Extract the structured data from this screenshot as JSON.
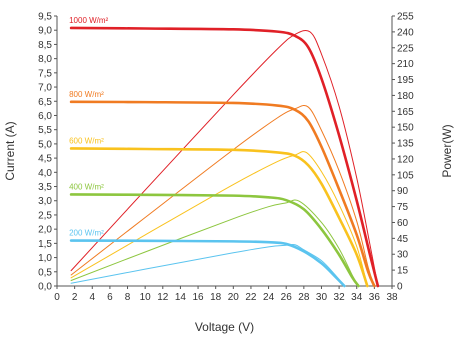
{
  "chart_data": {
    "type": "line",
    "xlabel": "Voltage (V)",
    "ylabel_left": "Current (A)",
    "ylabel_right": "Power(W)",
    "xlim": [
      0,
      38
    ],
    "ylim_left": [
      0,
      9.5
    ],
    "ylim_right": [
      0,
      255
    ],
    "x_ticks": [
      "0",
      "2",
      "4",
      "6",
      "8",
      "10",
      "12",
      "14",
      "16",
      "18",
      "20",
      "22",
      "24",
      "26",
      "28",
      "30",
      "32",
      "34",
      "36",
      "38"
    ],
    "y_left_ticks": [
      "0,0",
      "0,5",
      "1,0",
      "1,5",
      "2,0",
      "2,5",
      "3,0",
      "3,5",
      "4,0",
      "4,5",
      "5,0",
      "5,5",
      "6,0",
      "6,5",
      "7,0",
      "7,5",
      "8,0",
      "8,5",
      "9,0",
      "9,5"
    ],
    "y_right_ticks": [
      "0",
      "15",
      "30",
      "45",
      "60",
      "75",
      "90",
      "105",
      "120",
      "135",
      "150",
      "165",
      "180",
      "195",
      "210",
      "225",
      "240",
      "255"
    ],
    "grid": false,
    "series": [
      {
        "name": "1000 W/m²",
        "color": "#e02027",
        "iv": [
          [
            1.6,
            9.08
          ],
          [
            10,
            9.06
          ],
          [
            20,
            9.03
          ],
          [
            25,
            8.95
          ],
          [
            27,
            8.8
          ],
          [
            28.5,
            8.4
          ],
          [
            30,
            7.3
          ],
          [
            32,
            5.3
          ],
          [
            34,
            3.0
          ],
          [
            35.5,
            1.1
          ],
          [
            36.4,
            0
          ]
        ],
        "pv": [
          [
            1.6,
            14.5
          ],
          [
            10,
            90.6
          ],
          [
            20,
            180.6
          ],
          [
            25,
            223.8
          ],
          [
            27,
            237.6
          ],
          [
            28.7,
            240
          ],
          [
            30,
            219
          ],
          [
            32,
            169.6
          ],
          [
            34,
            102
          ],
          [
            35.5,
            39
          ],
          [
            36.4,
            0
          ]
        ]
      },
      {
        "name": "800 W/m²",
        "color": "#f07b22",
        "iv": [
          [
            1.6,
            6.48
          ],
          [
            10,
            6.47
          ],
          [
            20,
            6.44
          ],
          [
            25,
            6.35
          ],
          [
            27,
            6.2
          ],
          [
            28.5,
            5.8
          ],
          [
            30,
            4.9
          ],
          [
            32,
            3.4
          ],
          [
            34,
            1.8
          ],
          [
            35.3,
            0.5
          ],
          [
            36,
            0
          ]
        ],
        "pv": [
          [
            1.6,
            10.4
          ],
          [
            10,
            64.7
          ],
          [
            20,
            128.8
          ],
          [
            25,
            158.8
          ],
          [
            27,
            167.4
          ],
          [
            28.5,
            169
          ],
          [
            30,
            147
          ],
          [
            32,
            108.8
          ],
          [
            34,
            61.2
          ],
          [
            35.3,
            17.6
          ],
          [
            36,
            0
          ]
        ]
      },
      {
        "name": "600 W/m²",
        "color": "#f9c21e",
        "iv": [
          [
            1.6,
            4.84
          ],
          [
            10,
            4.82
          ],
          [
            20,
            4.79
          ],
          [
            25,
            4.7
          ],
          [
            27,
            4.58
          ],
          [
            28.5,
            4.25
          ],
          [
            30,
            3.6
          ],
          [
            32,
            2.4
          ],
          [
            34,
            1.1
          ],
          [
            35.2,
            0
          ]
        ],
        "pv": [
          [
            1.6,
            7.7
          ],
          [
            10,
            48.2
          ],
          [
            20,
            95.8
          ],
          [
            25,
            117.5
          ],
          [
            27,
            123.7
          ],
          [
            28.3,
            126
          ],
          [
            30,
            108
          ],
          [
            32,
            76.8
          ],
          [
            34,
            37.4
          ],
          [
            35.2,
            0
          ]
        ]
      },
      {
        "name": "400 W/m²",
        "color": "#8dc63f",
        "iv": [
          [
            1.6,
            3.22
          ],
          [
            10,
            3.21
          ],
          [
            20,
            3.18
          ],
          [
            24,
            3.12
          ],
          [
            26,
            3.02
          ],
          [
            28,
            2.7
          ],
          [
            30,
            2.0
          ],
          [
            32,
            1.1
          ],
          [
            33.5,
            0.3
          ],
          [
            34.2,
            0
          ]
        ],
        "pv": [
          [
            1.6,
            5.2
          ],
          [
            10,
            32.1
          ],
          [
            20,
            63.6
          ],
          [
            24,
            74.9
          ],
          [
            26,
            78.5
          ],
          [
            27.5,
            80
          ],
          [
            30,
            60
          ],
          [
            32,
            35.2
          ],
          [
            33.5,
            10
          ],
          [
            34.2,
            0
          ]
        ]
      },
      {
        "name": "200 W/m²",
        "color": "#5bc4ef",
        "iv": [
          [
            1.6,
            1.6
          ],
          [
            10,
            1.59
          ],
          [
            20,
            1.57
          ],
          [
            24,
            1.54
          ],
          [
            26,
            1.48
          ],
          [
            28,
            1.22
          ],
          [
            30,
            0.8
          ],
          [
            31.5,
            0.35
          ],
          [
            32.6,
            0
          ]
        ],
        "pv": [
          [
            1.6,
            2.6
          ],
          [
            10,
            15.9
          ],
          [
            20,
            31.4
          ],
          [
            24,
            37
          ],
          [
            26,
            38.5
          ],
          [
            27,
            39
          ],
          [
            28,
            34.2
          ],
          [
            30,
            24
          ],
          [
            31.5,
            11
          ],
          [
            32.6,
            0
          ]
        ]
      }
    ]
  }
}
